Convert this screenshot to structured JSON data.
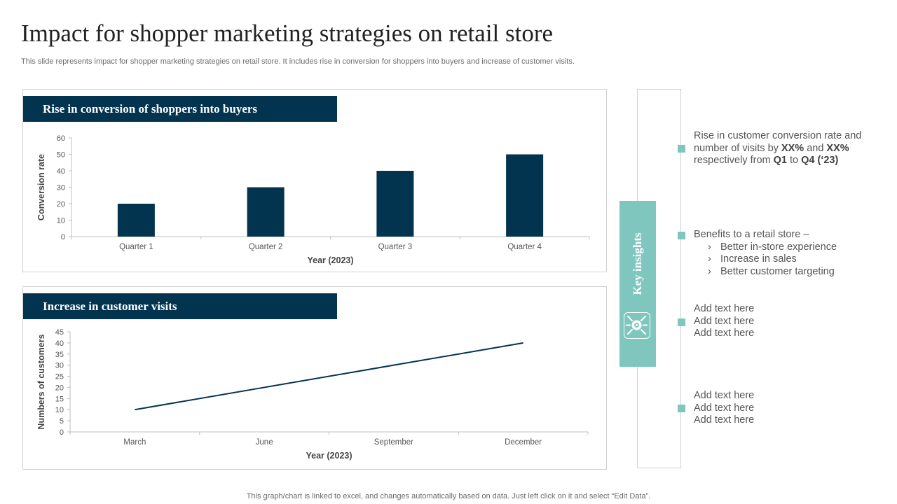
{
  "slide": {
    "title": "Impact for shopper marketing strategies on retail store",
    "subtitle": "This slide represents impact for shopper marketing strategies on retail store. It includes rise in conversion for shoppers into buyers and increase of customer visits.",
    "footer": "This graph/chart is linked to excel,  and changes automatically based on data. Just left click on it and select “Edit Data”."
  },
  "colors": {
    "navy": "#02344f",
    "teal": "#7fc7be",
    "text": "#404040",
    "muted": "#6b6b6b",
    "border": "#cfcfcf"
  },
  "chart_data": [
    {
      "type": "bar",
      "title": "Rise in conversion of shoppers into buyers",
      "categories": [
        "Quarter 1",
        "Quarter 2",
        "Quarter 3",
        "Quarter 4"
      ],
      "values": [
        20,
        30,
        40,
        50
      ],
      "xlabel": "Year (2023)",
      "ylabel": "Conversion rate",
      "ylim": [
        0,
        60
      ],
      "yticks": [
        0,
        10,
        20,
        30,
        40,
        50,
        60
      ],
      "grid": false,
      "legend": "none",
      "color": "#02344f"
    },
    {
      "type": "line",
      "title": "Increase in customer visits",
      "categories": [
        "March",
        "June",
        "September",
        "December"
      ],
      "values": [
        10,
        20,
        30,
        40
      ],
      "xlabel": "Year (2023)",
      "ylabel": "Numbers of customers",
      "ylim": [
        0,
        45
      ],
      "yticks": [
        0,
        5,
        10,
        15,
        20,
        25,
        30,
        35,
        40,
        45
      ],
      "grid": false,
      "legend": "none",
      "color": "#02344f"
    }
  ],
  "insights": {
    "label": "Key insights",
    "icon": "target-arrows-icon",
    "blocks": [
      {
        "lines": [
          "Rise in customer conversion rate and",
          [
            "number of visits by ",
            {
              "b": "XX%"
            },
            " and ",
            {
              "b": "XX%"
            }
          ],
          [
            "respectively from ",
            {
              "b": "Q1"
            },
            " to ",
            {
              "b": "Q4 (‘23)"
            }
          ]
        ]
      },
      {
        "lines": [
          "Benefits to a retail store –"
        ],
        "sub": [
          "Better in-store experience",
          "Increase in sales",
          "Better customer targeting"
        ]
      },
      {
        "lines": [
          "Add text here",
          "Add text here",
          "Add text here"
        ]
      },
      {
        "lines": [
          "Add text here",
          "Add text here",
          "Add text here"
        ]
      }
    ]
  }
}
